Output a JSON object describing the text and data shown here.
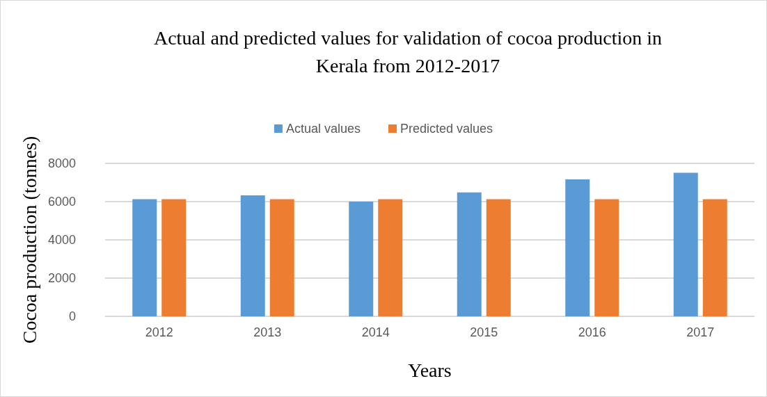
{
  "chart_data": {
    "type": "bar",
    "title": "Actual and predicted values for validation of cocoa production in\nKerala from 2012-2017",
    "xlabel": "Years",
    "ylabel": "Cocoa production (tonnes)",
    "categories": [
      "2012",
      "2013",
      "2014",
      "2015",
      "2016",
      "2017"
    ],
    "series": [
      {
        "name": "Actual values",
        "color": "#5b9bd5",
        "values": [
          6130,
          6330,
          6000,
          6480,
          7160,
          7510
        ]
      },
      {
        "name": "Predicted values",
        "color": "#ed7d31",
        "values": [
          6130,
          6130,
          6130,
          6130,
          6130,
          6130
        ]
      }
    ],
    "ylim": [
      0,
      8000
    ],
    "yticks": [
      0,
      2000,
      4000,
      6000,
      8000
    ],
    "grid": "y",
    "legend": "top"
  }
}
